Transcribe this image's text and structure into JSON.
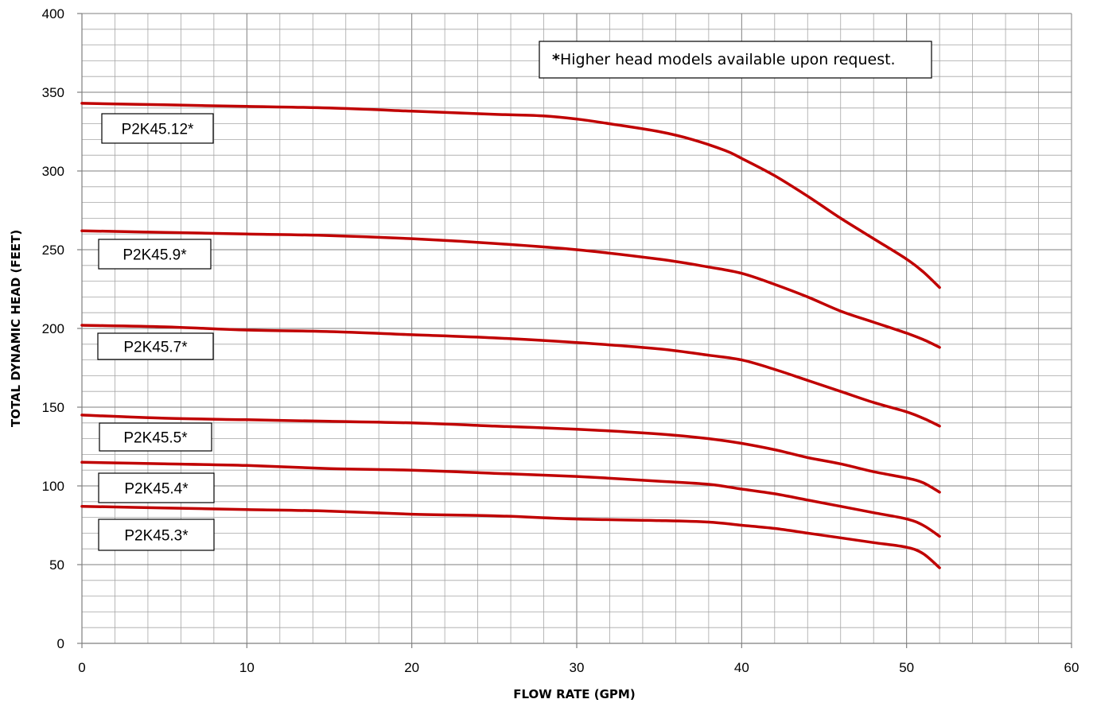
{
  "chart_data": {
    "type": "line",
    "xlabel": "FLOW RATE (GPM)",
    "ylabel": "TOTAL DYNAMIC HEAD (FEET)",
    "xlim": [
      0,
      60
    ],
    "ylim": [
      0,
      400
    ],
    "x_ticks": [
      "0",
      "10",
      "20",
      "30",
      "40",
      "50",
      "60"
    ],
    "y_ticks": [
      "0",
      "50",
      "100",
      "150",
      "200",
      "250",
      "300",
      "350",
      "400"
    ],
    "grid": true,
    "line_color": "#c00000",
    "annotation": "*Higher head models available upon request.",
    "series": [
      {
        "name": "P2K45.12*",
        "x": [
          0,
          5,
          10,
          15,
          20,
          25,
          28,
          30,
          32,
          35,
          37,
          39,
          40,
          42,
          44,
          46,
          48,
          50,
          51,
          52
        ],
        "y": [
          343,
          342,
          341,
          340,
          338,
          336,
          335,
          333,
          330,
          325,
          320,
          313,
          308,
          297,
          284,
          270,
          257,
          244,
          236,
          226
        ]
      },
      {
        "name": "P2K45.9*",
        "x": [
          0,
          5,
          10,
          15,
          20,
          25,
          30,
          35,
          38,
          40,
          42,
          44,
          46,
          48,
          50,
          51,
          52
        ],
        "y": [
          262,
          261,
          260,
          259,
          257,
          254,
          250,
          244,
          239,
          235,
          228,
          220,
          211,
          204,
          197,
          193,
          188
        ]
      },
      {
        "name": "P2K45.7*",
        "x": [
          0,
          5,
          10,
          15,
          20,
          25,
          30,
          35,
          38,
          40,
          42,
          44,
          46,
          48,
          50,
          51,
          52
        ],
        "y": [
          202,
          201,
          199,
          198,
          196,
          194,
          191,
          187,
          183,
          180,
          174,
          167,
          160,
          153,
          147,
          143,
          138
        ]
      },
      {
        "name": "P2K45.5*",
        "x": [
          0,
          5,
          10,
          15,
          20,
          25,
          30,
          35,
          38,
          40,
          42,
          44,
          46,
          48,
          50,
          51,
          52
        ],
        "y": [
          145,
          143,
          142,
          141,
          140,
          138,
          136,
          133,
          130,
          127,
          123,
          118,
          114,
          109,
          105,
          102,
          96
        ]
      },
      {
        "name": "P2K45.4*",
        "x": [
          0,
          5,
          10,
          15,
          20,
          25,
          30,
          35,
          38,
          40,
          42,
          44,
          46,
          48,
          50,
          51,
          52
        ],
        "y": [
          115,
          114,
          113,
          111,
          110,
          108,
          106,
          103,
          101,
          98,
          95,
          91,
          87,
          83,
          79,
          75,
          68
        ]
      },
      {
        "name": "P2K45.3*",
        "x": [
          0,
          5,
          10,
          15,
          20,
          25,
          30,
          35,
          38,
          40,
          42,
          44,
          46,
          48,
          50,
          51,
          52
        ],
        "y": [
          87,
          86,
          85,
          84,
          82,
          81,
          79,
          78,
          77,
          75,
          73,
          70,
          67,
          64,
          61,
          57,
          48
        ]
      }
    ]
  }
}
